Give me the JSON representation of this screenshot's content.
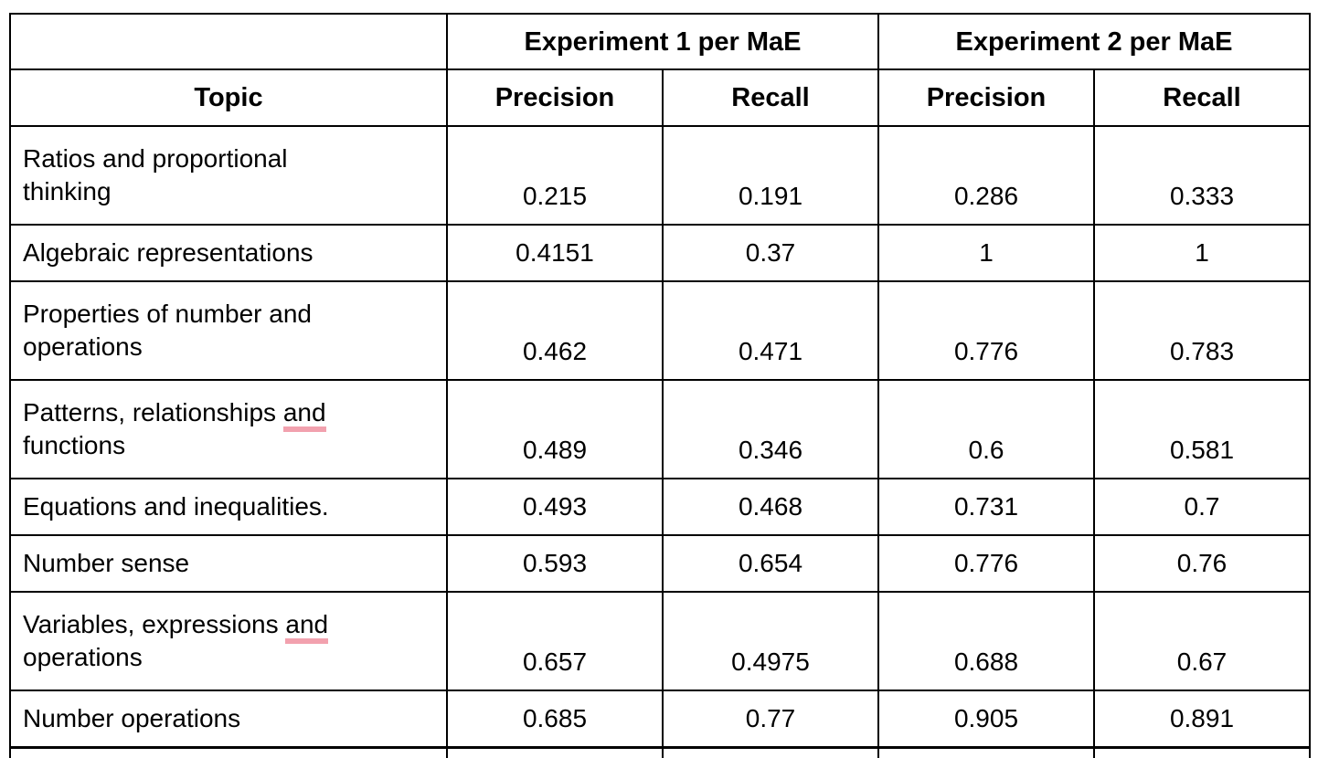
{
  "table": {
    "spellcheck_underline_color": "#f2a1ae",
    "header": {
      "topic_label": "Topic",
      "groups": [
        {
          "label": "Experiment 1 per MaE",
          "columns": [
            "Precision",
            "Recall"
          ]
        },
        {
          "label": "Experiment 2 per MaE",
          "columns": [
            "Precision",
            "Recall"
          ]
        }
      ]
    },
    "rows": [
      {
        "topic_text": "Ratios and proportional thinking",
        "topic_parts": [
          {
            "text": "Ratios and proportional"
          },
          {
            "break": true
          },
          {
            "text": "thinking"
          }
        ],
        "two_line": true,
        "values": [
          "0.215",
          "0.191",
          "0.286",
          "0.333"
        ]
      },
      {
        "topic_text": "Algebraic representations",
        "topic_parts": [
          {
            "text": "Algebraic representations"
          }
        ],
        "two_line": false,
        "values": [
          "0.4151",
          "0.37",
          "1",
          "1"
        ]
      },
      {
        "topic_text": "Properties of number and operations",
        "topic_parts": [
          {
            "text": "Properties of number and"
          },
          {
            "break": true
          },
          {
            "text": "operations"
          }
        ],
        "two_line": true,
        "values": [
          "0.462",
          "0.471",
          "0.776",
          "0.783"
        ]
      },
      {
        "topic_text": "Patterns, relationships and functions",
        "topic_parts": [
          {
            "text": "Patterns, relationships "
          },
          {
            "text": "and",
            "underline": true
          },
          {
            "break": true
          },
          {
            "text": "functions"
          }
        ],
        "two_line": true,
        "values": [
          "0.489",
          "0.346",
          "0.6",
          "0.581"
        ]
      },
      {
        "topic_text": "Equations and inequalities.",
        "topic_parts": [
          {
            "text": "Equations and inequalities."
          }
        ],
        "two_line": false,
        "values": [
          "0.493",
          "0.468",
          "0.731",
          "0.7"
        ]
      },
      {
        "topic_text": "Number sense",
        "topic_parts": [
          {
            "text": "Number sense"
          }
        ],
        "two_line": false,
        "values": [
          "0.593",
          "0.654",
          "0.776",
          "0.76"
        ]
      },
      {
        "topic_text": "Variables, expressions and operations",
        "topic_parts": [
          {
            "text": "Variables, expressions "
          },
          {
            "text": "and",
            "underline": true
          },
          {
            "break": true
          },
          {
            "text": "operations"
          }
        ],
        "two_line": true,
        "values": [
          "0.657",
          "0.4975",
          "0.688",
          "0.67"
        ]
      },
      {
        "topic_text": "Number operations",
        "topic_parts": [
          {
            "text": "Number operations"
          }
        ],
        "two_line": false,
        "values": [
          "0.685",
          "0.77",
          "0.905",
          "0.891"
        ]
      }
    ]
  }
}
